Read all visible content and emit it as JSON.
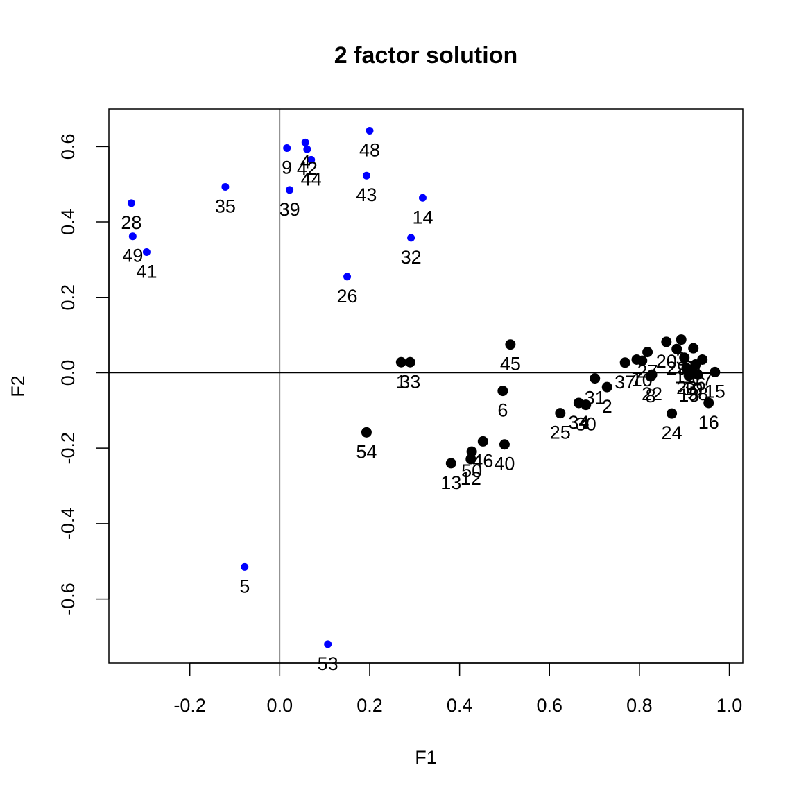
{
  "chart_data": {
    "type": "scatter",
    "title": "2 factor solution",
    "xlabel": "F1",
    "ylabel": "F2",
    "xlim": [
      -0.38,
      1.03
    ],
    "ylim": [
      -0.77,
      0.7
    ],
    "x_ticks": [
      "-0.2",
      "0.0",
      "0.2",
      "0.4",
      "0.6",
      "0.8",
      "1.0"
    ],
    "y_ticks": [
      "-0.6",
      "-0.4",
      "-0.2",
      "0.0",
      "0.2",
      "0.4",
      "0.6"
    ],
    "reference_lines": {
      "x": 0,
      "y": 0
    },
    "colors": {
      "group_a": "#0000ff",
      "group_b": "#000000"
    },
    "series": [
      {
        "points": [
          {
            "label": "28",
            "x": -0.33,
            "y": 0.45
          },
          {
            "label": "49",
            "x": -0.327,
            "y": 0.362
          },
          {
            "label": "41",
            "x": -0.296,
            "y": 0.32
          },
          {
            "label": "35",
            "x": -0.121,
            "y": 0.493
          },
          {
            "label": "5",
            "x": -0.078,
            "y": -0.515
          },
          {
            "label": "9",
            "x": 0.016,
            "y": 0.596
          },
          {
            "label": "39",
            "x": 0.022,
            "y": 0.485
          },
          {
            "label": "4",
            "x": 0.057,
            "y": 0.611
          },
          {
            "label": "42",
            "x": 0.061,
            "y": 0.593
          },
          {
            "label": "44",
            "x": 0.07,
            "y": 0.565
          },
          {
            "label": "53",
            "x": 0.107,
            "y": -0.72
          },
          {
            "label": "26",
            "x": 0.15,
            "y": 0.255
          },
          {
            "label": "43",
            "x": 0.193,
            "y": 0.523
          },
          {
            "label": "48",
            "x": 0.2,
            "y": 0.642
          },
          {
            "label": "32",
            "x": 0.292,
            "y": 0.358
          },
          {
            "label": "14",
            "x": 0.318,
            "y": 0.464
          }
        ]
      },
      {
        "points": [
          {
            "label": "54",
            "x": 0.193,
            "y": -0.158
          },
          {
            "label": "1",
            "x": 0.27,
            "y": 0.028
          },
          {
            "label": "33",
            "x": 0.29,
            "y": 0.028
          },
          {
            "label": "13",
            "x": 0.381,
            "y": -0.24
          },
          {
            "label": "12",
            "x": 0.425,
            "y": -0.229
          },
          {
            "label": "50",
            "x": 0.427,
            "y": -0.209
          },
          {
            "label": "46",
            "x": 0.452,
            "y": -0.182
          },
          {
            "label": "40",
            "x": 0.5,
            "y": -0.19
          },
          {
            "label": "6",
            "x": 0.496,
            "y": -0.048
          },
          {
            "label": "45",
            "x": 0.513,
            "y": 0.075
          },
          {
            "label": "25",
            "x": 0.624,
            "y": -0.107
          },
          {
            "label": "34",
            "x": 0.665,
            "y": -0.08
          },
          {
            "label": "30",
            "x": 0.681,
            "y": -0.085
          },
          {
            "label": "31",
            "x": 0.701,
            "y": -0.015
          },
          {
            "label": "2",
            "x": 0.728,
            "y": -0.038
          },
          {
            "label": "37",
            "x": 0.768,
            "y": 0.027
          },
          {
            "label": "7",
            "x": 0.794,
            "y": 0.035
          },
          {
            "label": "10",
            "x": 0.806,
            "y": 0.032
          },
          {
            "label": "27",
            "x": 0.818,
            "y": 0.055
          },
          {
            "label": "8",
            "x": 0.825,
            "y": -0.01
          },
          {
            "label": "22",
            "x": 0.828,
            "y": -0.005
          },
          {
            "label": "20",
            "x": 0.86,
            "y": 0.082
          },
          {
            "label": "24",
            "x": 0.872,
            "y": -0.108
          },
          {
            "label": "29",
            "x": 0.883,
            "y": 0.063
          },
          {
            "label": "3",
            "x": 0.893,
            "y": 0.088
          },
          {
            "label": "11",
            "x": 0.9,
            "y": 0.04
          },
          {
            "label": "23",
            "x": 0.905,
            "y": 0.012
          },
          {
            "label": "18",
            "x": 0.91,
            "y": -0.008
          },
          {
            "label": "19",
            "x": 0.918,
            "y": 0.008
          },
          {
            "label": "21",
            "x": 0.92,
            "y": 0.065
          },
          {
            "label": "36",
            "x": 0.925,
            "y": 0.022
          },
          {
            "label": "38",
            "x": 0.93,
            "y": -0.005
          },
          {
            "label": "17",
            "x": 0.94,
            "y": 0.035
          },
          {
            "label": "16",
            "x": 0.954,
            "y": -0.08
          },
          {
            "label": "15",
            "x": 0.968,
            "y": 0.002
          }
        ]
      }
    ]
  }
}
